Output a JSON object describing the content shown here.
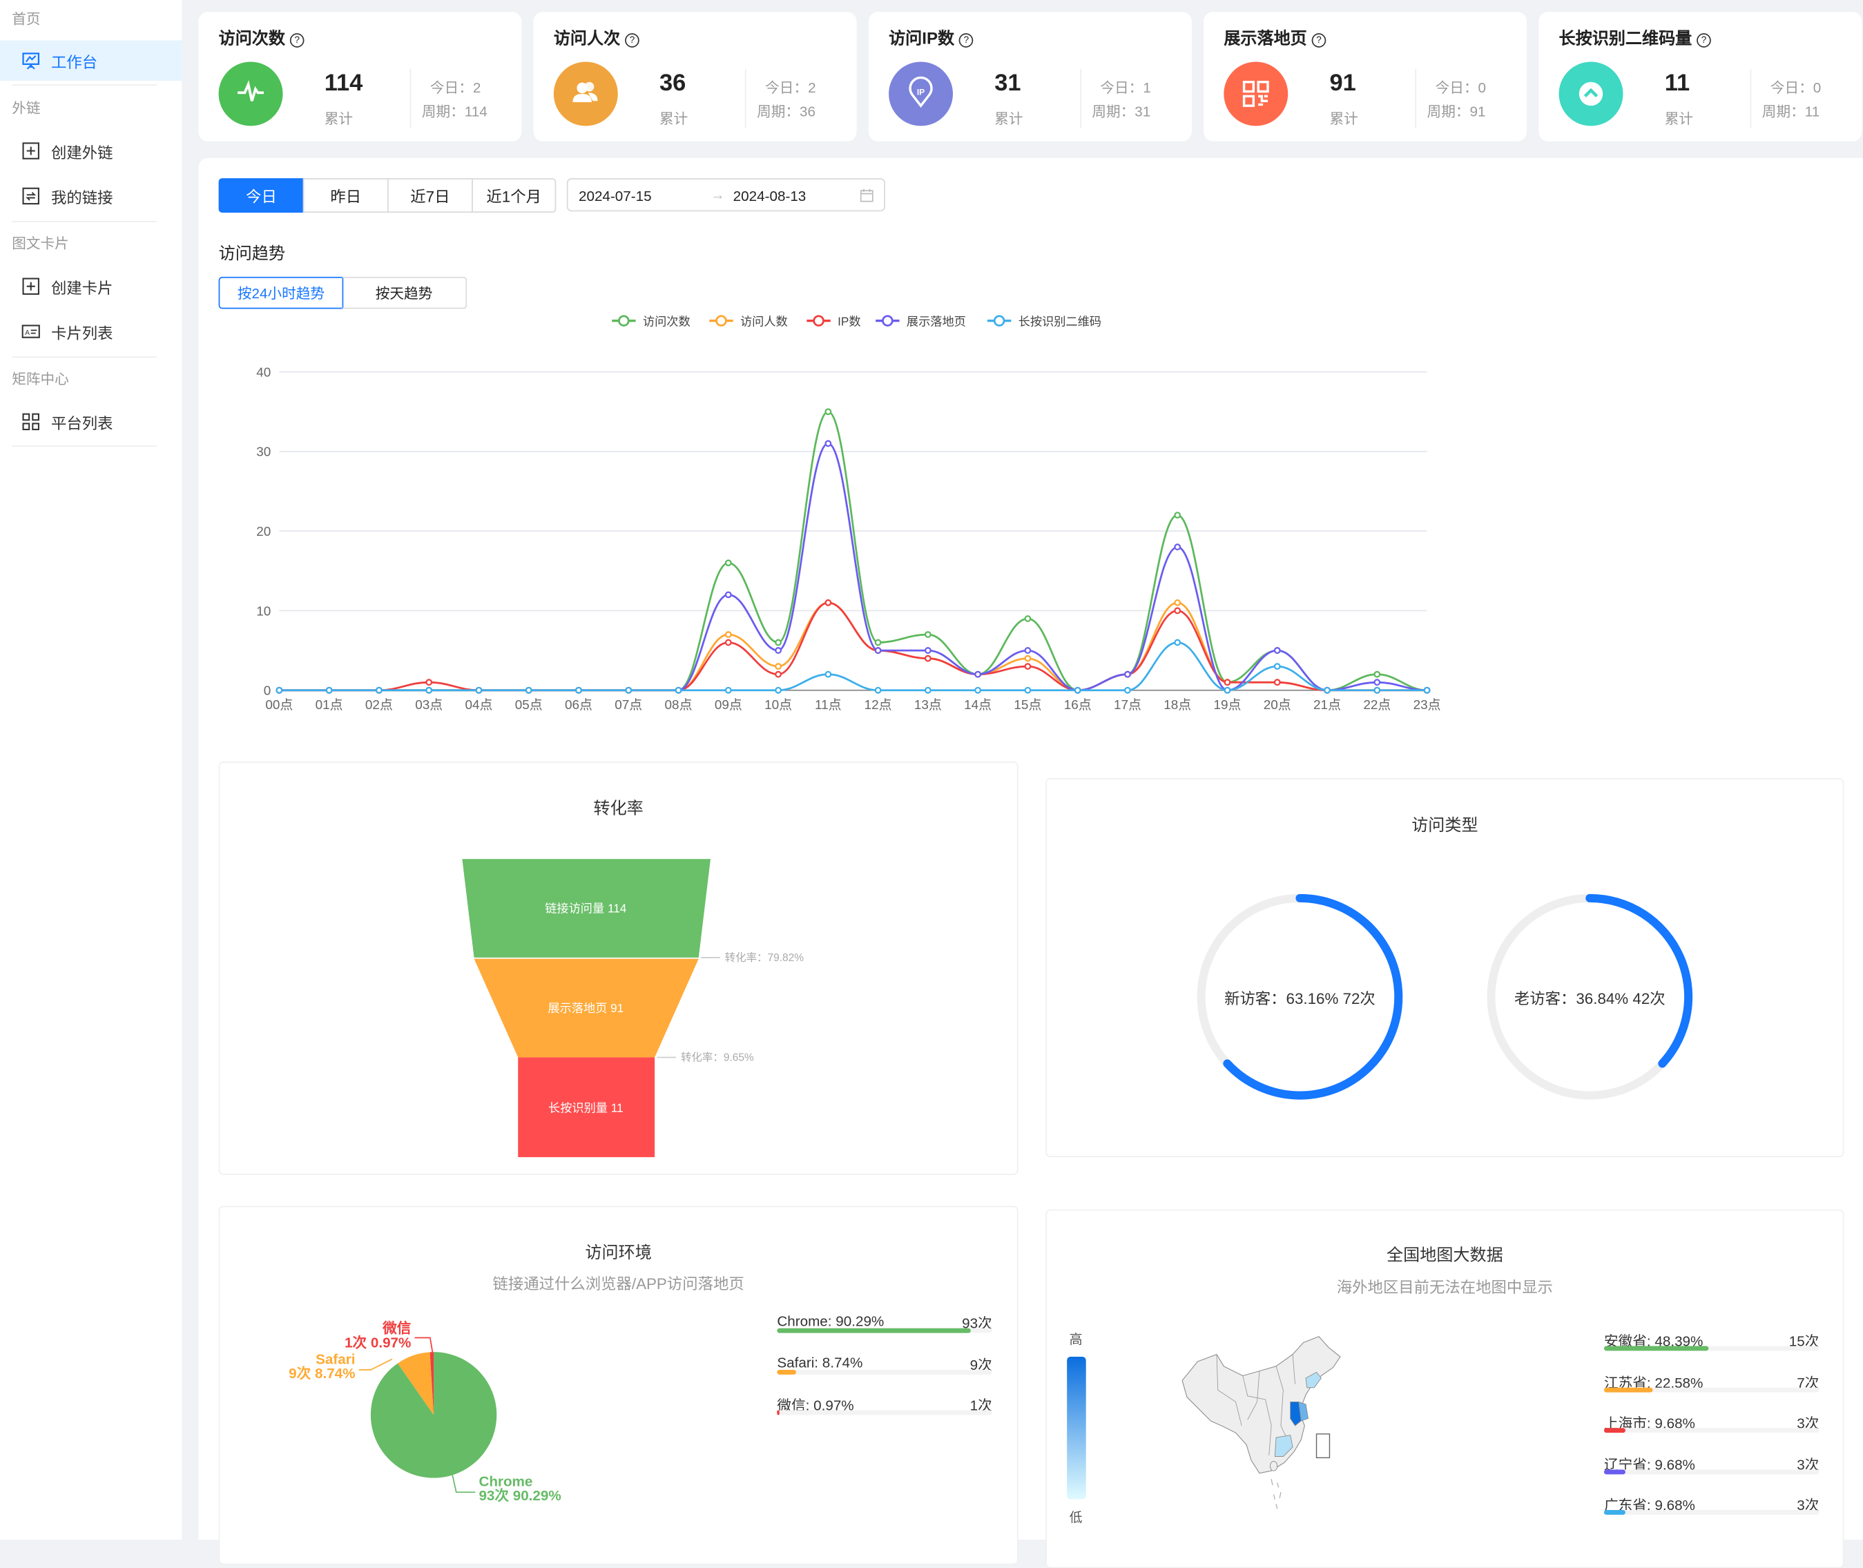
{
  "sidebar": {
    "home": "首页",
    "workbench": "工作台",
    "group_links": "外链",
    "create_link": "创建外链",
    "my_links": "我的链接",
    "group_cards": "图文卡片",
    "create_card": "创建卡片",
    "card_list": "卡片列表",
    "group_matrix": "矩阵中心",
    "platform_list": "平台列表"
  },
  "stats": [
    {
      "title": "访问次数",
      "value": "114",
      "total_label": "累计",
      "today": "今日：2",
      "period": "周期：114",
      "icon": "pulse-icon",
      "color": "#4cbf56"
    },
    {
      "title": "访问人次",
      "value": "36",
      "total_label": "累计",
      "today": "今日：2",
      "period": "周期：36",
      "icon": "users-icon",
      "color": "#f0a43d"
    },
    {
      "title": "访问IP数",
      "value": "31",
      "total_label": "累计",
      "today": "今日：1",
      "period": "周期：31",
      "icon": "ip-pin-icon",
      "color": "#7b83db"
    },
    {
      "title": "展示落地页",
      "value": "91",
      "total_label": "累计",
      "today": "今日：0",
      "period": "周期：91",
      "icon": "qrcode-icon",
      "color": "#ff6a4d"
    },
    {
      "title": "长按识别二维码量",
      "value": "11",
      "total_label": "累计",
      "today": "今日：0",
      "period": "周期：11",
      "icon": "chevron-up-icon",
      "color": "#3fd8c2"
    }
  ],
  "filters": {
    "ranges": [
      "今日",
      "昨日",
      "近7日",
      "近1个月"
    ],
    "active": "今日",
    "date_start": "2024-07-15",
    "date_end": "2024-08-13"
  },
  "trend": {
    "title": "访问趋势",
    "modes": [
      "按24小时趋势",
      "按天趋势"
    ],
    "active_mode": "按24小时趋势"
  },
  "chart_data": {
    "type": "line",
    "x": [
      "00点",
      "01点",
      "02点",
      "03点",
      "04点",
      "05点",
      "06点",
      "07点",
      "08点",
      "09点",
      "10点",
      "11点",
      "12点",
      "13点",
      "14点",
      "15点",
      "16点",
      "17点",
      "18点",
      "19点",
      "20点",
      "21点",
      "22点",
      "23点"
    ],
    "ylim": [
      0,
      40
    ],
    "yticks": [
      0,
      10,
      20,
      30,
      40
    ],
    "grid": true,
    "legend": "top-center",
    "series": [
      {
        "name": "访问次数",
        "color": "#5cb85c",
        "values": [
          0,
          0,
          0,
          0,
          0,
          0,
          0,
          0,
          0,
          16,
          6,
          35,
          6,
          7,
          2,
          9,
          0,
          2,
          22,
          1,
          5,
          0,
          2,
          0
        ]
      },
      {
        "name": "访问人数",
        "color": "#ffa630",
        "values": [
          0,
          0,
          0,
          0,
          0,
          0,
          0,
          0,
          0,
          7,
          3,
          11,
          5,
          4,
          2,
          4,
          0,
          2,
          11,
          1,
          1,
          0,
          0,
          0
        ]
      },
      {
        "name": "IP数",
        "color": "#f03e3e",
        "values": [
          0,
          0,
          0,
          1,
          0,
          0,
          0,
          0,
          0,
          6,
          2,
          11,
          5,
          4,
          2,
          3,
          0,
          2,
          10,
          1,
          1,
          0,
          0,
          0
        ]
      },
      {
        "name": "展示落地页",
        "color": "#6a5cf0",
        "values": [
          0,
          0,
          0,
          0,
          0,
          0,
          0,
          0,
          0,
          12,
          5,
          31,
          5,
          5,
          2,
          5,
          0,
          2,
          18,
          0,
          5,
          0,
          1,
          0
        ]
      },
      {
        "name": "长按识别二维码",
        "color": "#3caeea",
        "values": [
          0,
          0,
          0,
          0,
          0,
          0,
          0,
          0,
          0,
          0,
          0,
          2,
          0,
          0,
          0,
          0,
          0,
          0,
          6,
          0,
          3,
          0,
          0,
          0
        ]
      }
    ]
  },
  "funnel": {
    "title": "转化率",
    "stages": [
      "链接访问量 114",
      "展示落地页 91",
      "长按识别量 11"
    ],
    "rates": [
      "转化率：79.82%",
      "转化率：9.65%"
    ],
    "colors": [
      "#6abf69",
      "#ffaa3a",
      "#ff4d4f"
    ]
  },
  "visit_type": {
    "title": "访问类型",
    "new_label": "新访客：63.16% 72次",
    "new_pct": 63.16,
    "old_label": "老访客：36.84% 42次",
    "old_pct": 36.84,
    "color": "#1677ff"
  },
  "environment": {
    "title": "访问环境",
    "subtitle": "链接通过什么浏览器/APP访问落地页",
    "items": [
      {
        "name": "Chrome",
        "count": 93,
        "pct": 90.29,
        "label": "Chrome: 90.29%",
        "count_label": "93次",
        "pie_name": "Chrome",
        "pie_value": "93次 90.29%",
        "color": "#66bb66"
      },
      {
        "name": "Safari",
        "count": 9,
        "pct": 8.74,
        "label": "Safari: 8.74%",
        "count_label": "9次",
        "pie_name": "Safari",
        "pie_value": "9次 8.74%",
        "color": "#ffaa33"
      },
      {
        "name": "微信",
        "count": 1,
        "pct": 0.97,
        "label": "微信: 0.97%",
        "count_label": "1次",
        "pie_name": "微信",
        "pie_value": "1次 0.97%",
        "color": "#f03e3e"
      }
    ]
  },
  "map": {
    "title": "全国地图大数据",
    "subtitle": "海外地区目前无法在地图中显示",
    "high": "高",
    "low": "低",
    "provinces": [
      {
        "label": "安徽省: 48.39%",
        "count": "15次",
        "pct": 48.39,
        "color": "#66bb66"
      },
      {
        "label": "江苏省: 22.58%",
        "count": "7次",
        "pct": 22.58,
        "color": "#ffaa33"
      },
      {
        "label": "上海市: 9.68%",
        "count": "3次",
        "pct": 9.68,
        "color": "#f03e3e"
      },
      {
        "label": "辽宁省: 9.68%",
        "count": "3次",
        "pct": 9.68,
        "color": "#6a5cf0"
      },
      {
        "label": "广东省: 9.68%",
        "count": "3次",
        "pct": 9.68,
        "color": "#3caeea"
      }
    ]
  }
}
